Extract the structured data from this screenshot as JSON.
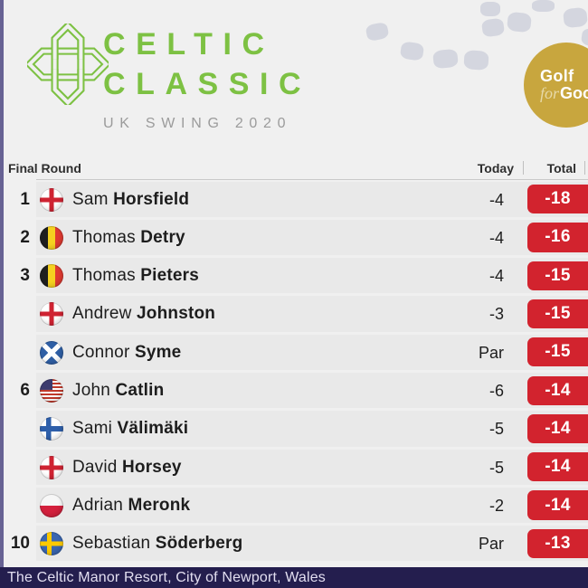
{
  "header": {
    "title_line1": "CELTIC",
    "title_line2": "CLASSIC",
    "subtitle": "UK SWING 2020",
    "brand_green": "#7dc143",
    "gold_badge": {
      "line1": "Golf",
      "line2_italic": "for",
      "line2_bold": "Good",
      "color": "#c8a63e"
    }
  },
  "leaderboard": {
    "title": "Final Round",
    "columns": {
      "today": "Today",
      "total": "Total"
    },
    "accent_red": "#d2232e",
    "rows": [
      {
        "pos": "1",
        "flag": "england",
        "first": "Sam",
        "last": "Horsfield",
        "today": "-4",
        "total": "-18"
      },
      {
        "pos": "2",
        "flag": "belgium",
        "first": "Thomas",
        "last": "Detry",
        "today": "-4",
        "total": "-16"
      },
      {
        "pos": "3",
        "flag": "belgium",
        "first": "Thomas",
        "last": "Pieters",
        "today": "-4",
        "total": "-15"
      },
      {
        "pos": "",
        "flag": "england",
        "first": "Andrew",
        "last": "Johnston",
        "today": "-3",
        "total": "-15"
      },
      {
        "pos": "",
        "flag": "scotland",
        "first": "Connor",
        "last": "Syme",
        "today": "Par",
        "total": "-15"
      },
      {
        "pos": "6",
        "flag": "usa",
        "first": "John",
        "last": "Catlin",
        "today": "-6",
        "total": "-14"
      },
      {
        "pos": "",
        "flag": "finland",
        "first": "Sami",
        "last": "Välimäki",
        "today": "-5",
        "total": "-14"
      },
      {
        "pos": "",
        "flag": "england",
        "first": "David",
        "last": "Horsey",
        "today": "-5",
        "total": "-14"
      },
      {
        "pos": "",
        "flag": "poland",
        "first": "Adrian",
        "last": "Meronk",
        "today": "-2",
        "total": "-14"
      },
      {
        "pos": "10",
        "flag": "sweden",
        "first": "Sebastian",
        "last": "Söderberg",
        "today": "Par",
        "total": "-13"
      }
    ]
  },
  "footer": {
    "venue": "The Celtic Manor Resort, City of Newport, Wales",
    "bar_color": "#241e4e"
  }
}
